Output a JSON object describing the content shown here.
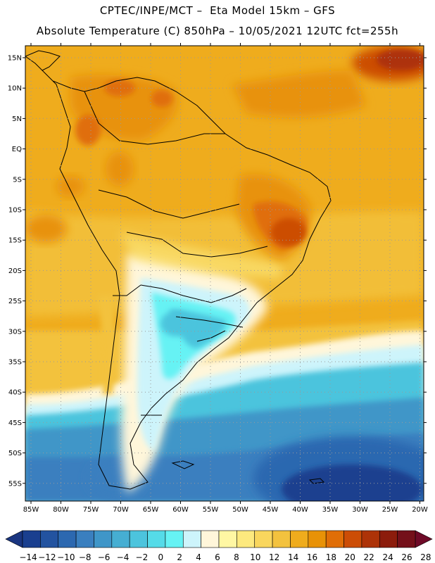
{
  "header": {
    "line1": "CPTEC/INPE/MCT –  Eta Model 15km – GFS",
    "line2": "Absolute Temperature (C) 850hPa – 10/05/2021 12UTC fct=255h"
  },
  "axes": {
    "lat_labels": [
      "15N",
      "10N",
      "5N",
      "EQ",
      "5S",
      "10S",
      "15S",
      "20S",
      "25S",
      "30S",
      "35S",
      "40S",
      "45S",
      "50S",
      "55S"
    ],
    "lon_labels": [
      "85W",
      "80W",
      "75W",
      "70W",
      "65W",
      "60W",
      "55W",
      "50W",
      "45W",
      "40W",
      "35W",
      "30W",
      "25W",
      "20W"
    ]
  },
  "colorbar": {
    "labels": [
      "-14",
      "-12",
      "-10",
      "-8",
      "-6",
      "-4",
      "-2",
      "0",
      "2",
      "4",
      "6",
      "8",
      "10",
      "12",
      "14",
      "16",
      "18",
      "20",
      "22",
      "24",
      "26",
      "28"
    ],
    "colors": [
      "#1a3f8f",
      "#2353a0",
      "#2c68b0",
      "#3a7fbf",
      "#3f96c8",
      "#46aed2",
      "#4cc4dd",
      "#55dbe8",
      "#66f2f4",
      "#cdf4fb",
      "#fff6da",
      "#fff7a3",
      "#fde97e",
      "#f9d65d",
      "#f3c23e",
      "#efac1d",
      "#e89207",
      "#e06e07",
      "#cc4d06",
      "#ad3308",
      "#8c1c0c",
      "#74101a"
    ],
    "low_color": "#1a3580",
    "high_color": "#6e0a27"
  }
}
